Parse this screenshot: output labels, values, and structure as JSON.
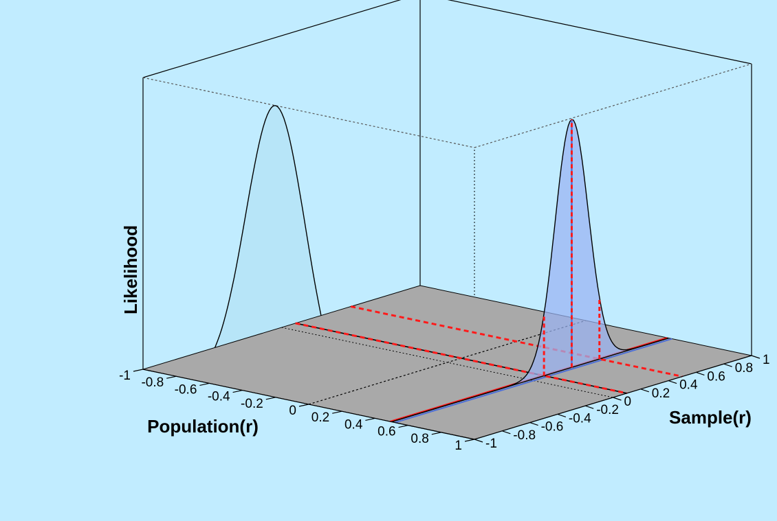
{
  "colors": {
    "background": "#c1ecff",
    "floor": "#a9a9a9",
    "population_fill": "#b4e4f6",
    "sample_fill": "#9ab3f2",
    "marker_red": "#ff1a1a",
    "marker_blue": "#4e6fd6",
    "frame": "#000000"
  },
  "chart_data": {
    "type": "3d-surface",
    "title": "",
    "xlabel": "Population(r)",
    "ylabel": "Sample(r)",
    "zlabel": "Likelihood",
    "xlim": [
      -1,
      1
    ],
    "ylim": [
      -1,
      1
    ],
    "x_ticks": [
      "-1",
      "-0.8",
      "-0.6",
      "-0.4",
      "-0.2",
      "0",
      "0.2",
      "0.4",
      "0.6",
      "0.8",
      "1"
    ],
    "y_ticks": [
      "-1",
      "-0.8",
      "-0.6",
      "-0.4",
      "-0.2",
      "0",
      "0.2",
      "0.4",
      "0.6",
      "0.8",
      "1"
    ],
    "population_distribution": {
      "plane": "sample = -1",
      "mean": -0.2,
      "sd": 0.18,
      "peak": 1.0
    },
    "sample_distribution": {
      "plane": "population = 0.5",
      "mean": 0.3,
      "sd": 0.12,
      "peak": 0.85
    },
    "sample_interval": [
      0.1,
      0.5
    ],
    "markers": {
      "population_value": 0.5,
      "sample_value": 0.3,
      "sample_interval_dashed": [
        0.1,
        0.5
      ]
    },
    "reference_dotted": {
      "population": 0,
      "sample": 0
    }
  }
}
